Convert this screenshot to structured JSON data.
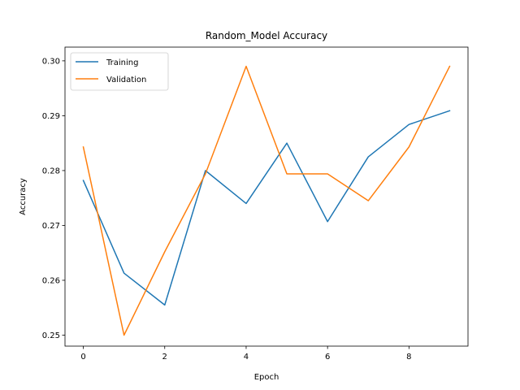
{
  "chart_data": {
    "type": "line",
    "title": "Random_Model Accuracy",
    "xlabel": "Epoch",
    "ylabel": "Accuracy",
    "x": [
      0,
      1,
      2,
      3,
      4,
      5,
      6,
      7,
      8,
      9
    ],
    "xlim": [
      -0.45,
      9.45
    ],
    "ylim": [
      0.248,
      0.3025
    ],
    "xticks": [
      0,
      2,
      4,
      6,
      8
    ],
    "yticks": [
      0.25,
      0.26,
      0.27,
      0.28,
      0.29,
      0.3
    ],
    "ytick_labels": [
      "0.25",
      "0.26",
      "0.27",
      "0.28",
      "0.29",
      "0.30"
    ],
    "grid": false,
    "legend_position": "top-left",
    "series": [
      {
        "name": "Training",
        "color": "#1f77b4",
        "values": [
          0.2782,
          0.2613,
          0.2555,
          0.28,
          0.274,
          0.285,
          0.2707,
          0.2825,
          0.2884,
          0.2909
        ]
      },
      {
        "name": "Validation",
        "color": "#ff7f0e",
        "values": [
          0.2843,
          0.25,
          0.2652,
          0.2794,
          0.299,
          0.2794,
          0.2794,
          0.2745,
          0.2843,
          0.299
        ]
      }
    ]
  }
}
